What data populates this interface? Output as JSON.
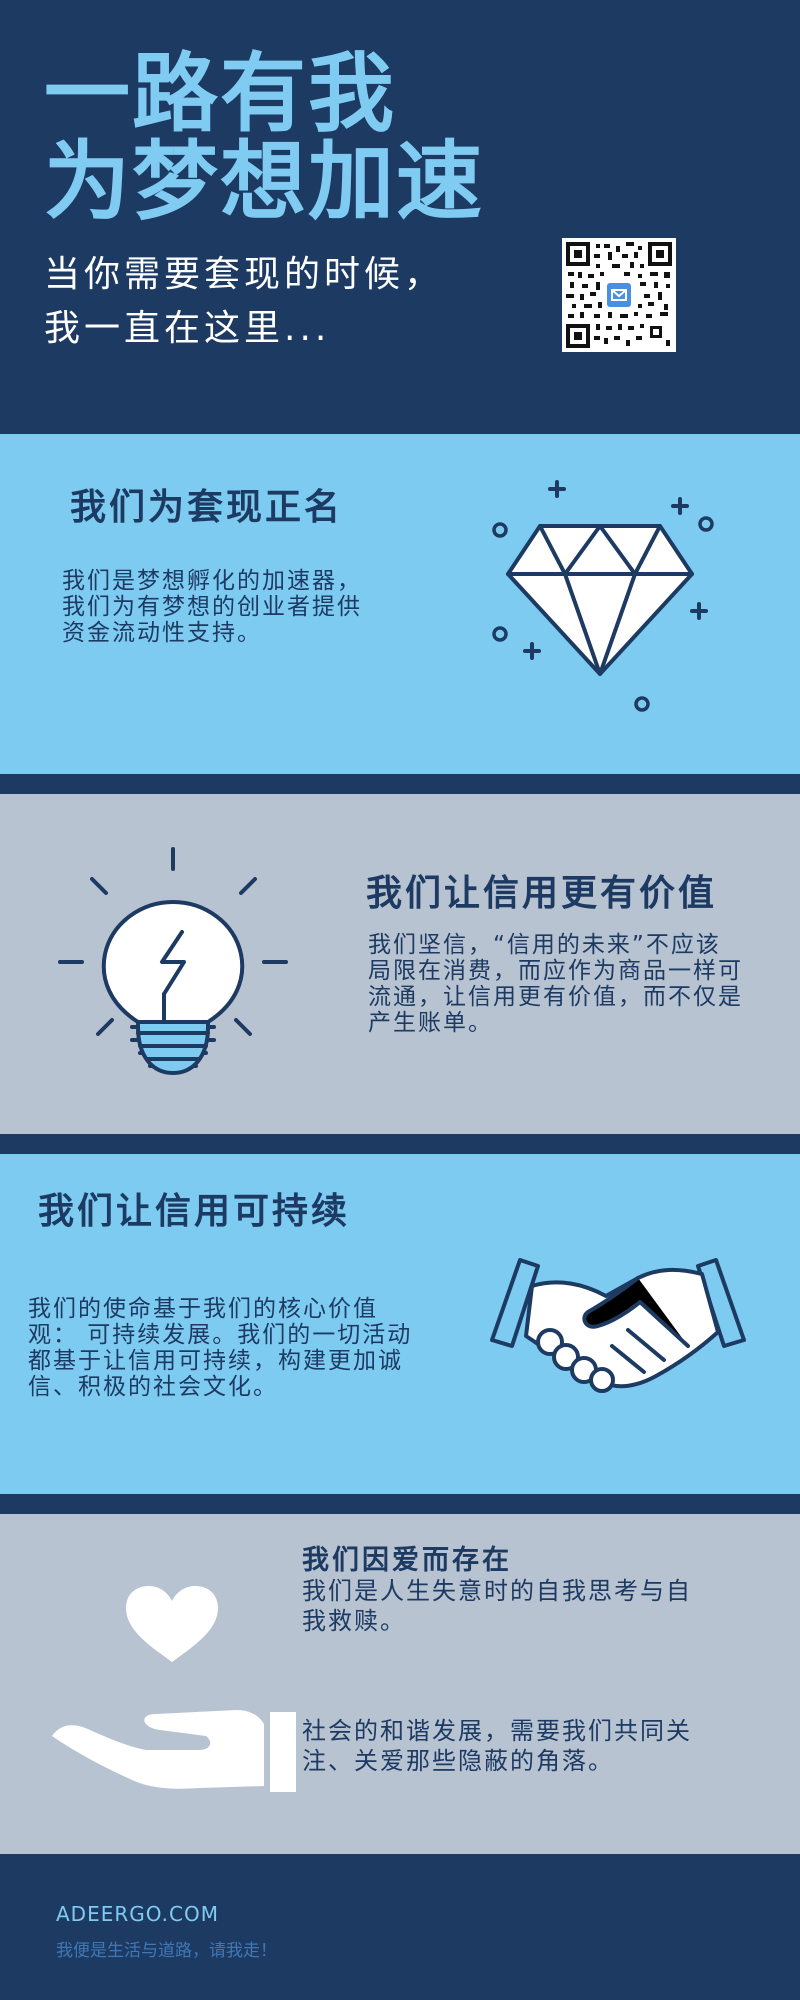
{
  "header": {
    "title_lines": [
      "一路有我",
      "为梦想加速"
    ],
    "subtitle_lines": [
      "当你需要套现的时候，",
      "我一直在这里..."
    ]
  },
  "sections": [
    {
      "heading": "我们为套现正名",
      "body_lines": [
        "我们是梦想孵化的加速器，",
        "我们为有梦想的创业者提供",
        "资金流动性支持。"
      ],
      "icon": "diamond-icon"
    },
    {
      "heading": "我们让信用更有价值",
      "body_lines": [
        "我们坚信，“信用的未来”不应该",
        "局限在消费，而应作为商品一样可",
        "流通，让信用更有价值，而不仅是",
        "产生账单。"
      ],
      "icon": "lightbulb-icon"
    },
    {
      "heading": "我们让信用可持续",
      "body_lines": [
        "我们的使命基于我们的核心价值",
        "观：  可持续发展。我们的一切活动",
        "都基于让信用可持续，构建更加诚",
        "信、积极的社会文化。"
      ],
      "icon": "handshake-icon"
    },
    {
      "heading": "我们因爱而存在",
      "body_lines": [
        "我们是人生失意时的自我思考与自",
        "我救赎。"
      ],
      "body2_lines": [
        "社会的和谐发展，需要我们共同关",
        "注、关爱那些隐蔽的角落。"
      ],
      "icon": "heart-in-hand-icon"
    }
  ],
  "footer": {
    "url": "ADEERGO.COM",
    "tagline": "我便是生活与道路，请我走！"
  },
  "colors": {
    "navy": "#1d3a63",
    "sky": "#7ecbf1",
    "grey": "#b8c3d1",
    "white": "#ffffff"
  }
}
